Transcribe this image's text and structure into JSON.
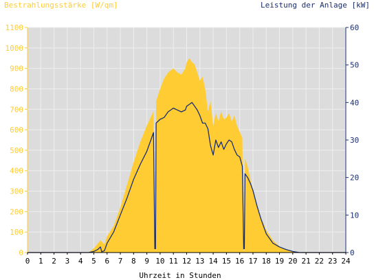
{
  "chart_data": {
    "type": "area",
    "title": "",
    "left_axis_title": "Bestrahlungsstärke [W/qm]",
    "right_axis_title": "Leistung der Anlage [kW]",
    "xlabel": "Uhrzeit in Stunden",
    "xlim": [
      0,
      24
    ],
    "ylim_left": [
      0,
      1100
    ],
    "ylim_right": [
      0,
      60
    ],
    "x_ticks": [
      "0",
      "1",
      "2",
      "3",
      "4",
      "5",
      "6",
      "7",
      "8",
      "9",
      "10",
      "11",
      "12",
      "13",
      "14",
      "15",
      "16",
      "17",
      "18",
      "19",
      "20",
      "21",
      "22",
      "23",
      "24"
    ],
    "y_left_ticks": [
      "0",
      "100",
      "200",
      "300",
      "400",
      "500",
      "600",
      "700",
      "800",
      "900",
      "1000",
      "1100"
    ],
    "y_right_ticks": [
      "0",
      "10",
      "20",
      "30",
      "40",
      "50",
      "60"
    ],
    "grid": true,
    "colors": {
      "irradiance_fill": "#FFCC33",
      "power_line": "#1A2E6E",
      "plot_background": "#DCDCDC",
      "left_axis": "#FFCC33",
      "right_axis": "#1A2E6E"
    },
    "series": [
      {
        "axis": "left",
        "unit": "W/qm",
        "x": [
          0,
          4.6,
          5.0,
          5.5,
          5.8,
          6.0,
          6.5,
          7.0,
          7.5,
          8.0,
          8.5,
          9.0,
          9.5,
          9.6,
          9.65,
          9.7,
          10.0,
          10.3,
          10.6,
          11.0,
          11.3,
          11.6,
          11.9,
          12.0,
          12.2,
          12.4,
          12.6,
          12.8,
          13.0,
          13.2,
          13.4,
          13.6,
          13.8,
          14.0,
          14.2,
          14.4,
          14.6,
          14.8,
          15.0,
          15.2,
          15.4,
          15.6,
          15.8,
          16.0,
          16.2,
          16.3,
          16.35,
          16.4,
          16.6,
          16.8,
          17.0,
          17.3,
          17.6,
          18.0,
          18.5,
          19.0,
          19.5,
          20.0,
          20.5,
          24
        ],
        "y": [
          0,
          0,
          20,
          60,
          40,
          80,
          130,
          220,
          330,
          440,
          540,
          620,
          690,
          10,
          10,
          740,
          800,
          850,
          880,
          900,
          880,
          870,
          900,
          930,
          950,
          930,
          920,
          880,
          840,
          860,
          800,
          690,
          740,
          620,
          680,
          640,
          690,
          650,
          660,
          680,
          640,
          670,
          620,
          590,
          560,
          10,
          10,
          460,
          420,
          360,
          300,
          240,
          170,
          110,
          60,
          30,
          15,
          5,
          0,
          0
        ]
      },
      {
        "axis": "right",
        "unit": "kW",
        "x": [
          0,
          4.6,
          5.0,
          5.3,
          5.5,
          5.6,
          5.8,
          6.0,
          6.5,
          7.0,
          7.5,
          8.0,
          8.5,
          9.0,
          9.5,
          9.6,
          9.65,
          9.7,
          10.0,
          10.3,
          10.6,
          11.0,
          11.3,
          11.6,
          11.9,
          12.0,
          12.2,
          12.4,
          12.6,
          12.8,
          13.0,
          13.2,
          13.4,
          13.6,
          13.8,
          14.0,
          14.2,
          14.4,
          14.6,
          14.8,
          15.0,
          15.2,
          15.4,
          15.6,
          15.8,
          16.0,
          16.2,
          16.3,
          16.35,
          16.4,
          16.6,
          16.8,
          17.0,
          17.3,
          17.6,
          18.0,
          18.5,
          19.0,
          19.5,
          20.0,
          20.5,
          24
        ],
        "y": [
          0,
          0,
          0.3,
          0.8,
          1.5,
          0.2,
          0.5,
          2.5,
          5.5,
          10.0,
          14.5,
          19.5,
          23.5,
          27.0,
          32.0,
          1.0,
          1.0,
          34.5,
          35.5,
          36.0,
          37.5,
          38.5,
          38.0,
          37.5,
          38.0,
          39.0,
          39.5,
          40.0,
          39.0,
          38.0,
          36.5,
          34.5,
          34.5,
          33.0,
          28.5,
          26.0,
          30.0,
          28.0,
          29.5,
          27.5,
          29.0,
          30.0,
          29.5,
          27.5,
          26.0,
          25.5,
          23.0,
          1.0,
          1.0,
          21.0,
          20.0,
          18.5,
          16.5,
          12.5,
          9.0,
          5.0,
          2.5,
          1.5,
          0.8,
          0.3,
          0,
          0
        ]
      }
    ]
  }
}
